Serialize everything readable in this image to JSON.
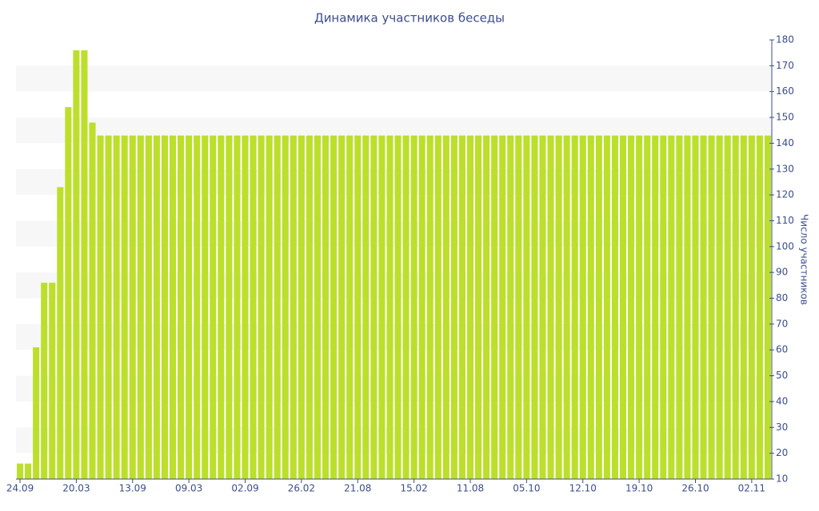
{
  "chart_data": {
    "type": "bar",
    "title": "Динамика участников беседы",
    "y_axis_label": "Число участников",
    "categories": [
      "24.09",
      null,
      null,
      null,
      null,
      null,
      null,
      "20.03",
      null,
      null,
      null,
      null,
      null,
      null,
      "13.09",
      null,
      null,
      null,
      null,
      null,
      null,
      "09.03",
      null,
      null,
      null,
      null,
      null,
      null,
      "02.09",
      null,
      null,
      null,
      null,
      null,
      null,
      "26.02",
      null,
      null,
      null,
      null,
      null,
      null,
      "21.08",
      null,
      null,
      null,
      null,
      null,
      null,
      "15.02",
      null,
      null,
      null,
      null,
      null,
      null,
      "11.08",
      null,
      null,
      null,
      null,
      null,
      null,
      "05.10",
      null,
      null,
      null,
      null,
      null,
      null,
      "12.10",
      null,
      null,
      null,
      null,
      null,
      null,
      "19.10",
      null,
      null,
      null,
      null,
      null,
      null,
      "26.10",
      null,
      null,
      null,
      null,
      null,
      null,
      "02.11",
      null,
      null
    ],
    "values": [
      16,
      16,
      61,
      86,
      86,
      123,
      154,
      176,
      176,
      148,
      143,
      143,
      143,
      143,
      143,
      143,
      143,
      143,
      143,
      143,
      143,
      143,
      143,
      143,
      143,
      143,
      143,
      143,
      143,
      143,
      143,
      143,
      143,
      143,
      143,
      143,
      143,
      143,
      143,
      143,
      143,
      143,
      143,
      143,
      143,
      143,
      143,
      143,
      143,
      143,
      143,
      143,
      143,
      143,
      143,
      143,
      143,
      143,
      143,
      143,
      143,
      143,
      143,
      143,
      143,
      143,
      143,
      143,
      143,
      143,
      143,
      143,
      143,
      143,
      143,
      143,
      143,
      143,
      143,
      143,
      143,
      143,
      143,
      143,
      143,
      143,
      143,
      143,
      143,
      143,
      143,
      143,
      143,
      143
    ],
    "color": "#bcdf2b",
    "ylim": [
      10,
      180
    ],
    "yticks": [
      10,
      20,
      30,
      40,
      50,
      60,
      70,
      80,
      90,
      100,
      110,
      120,
      130,
      140,
      150,
      160,
      170,
      180
    ],
    "y_axis_side": "right",
    "grid": "bands"
  }
}
